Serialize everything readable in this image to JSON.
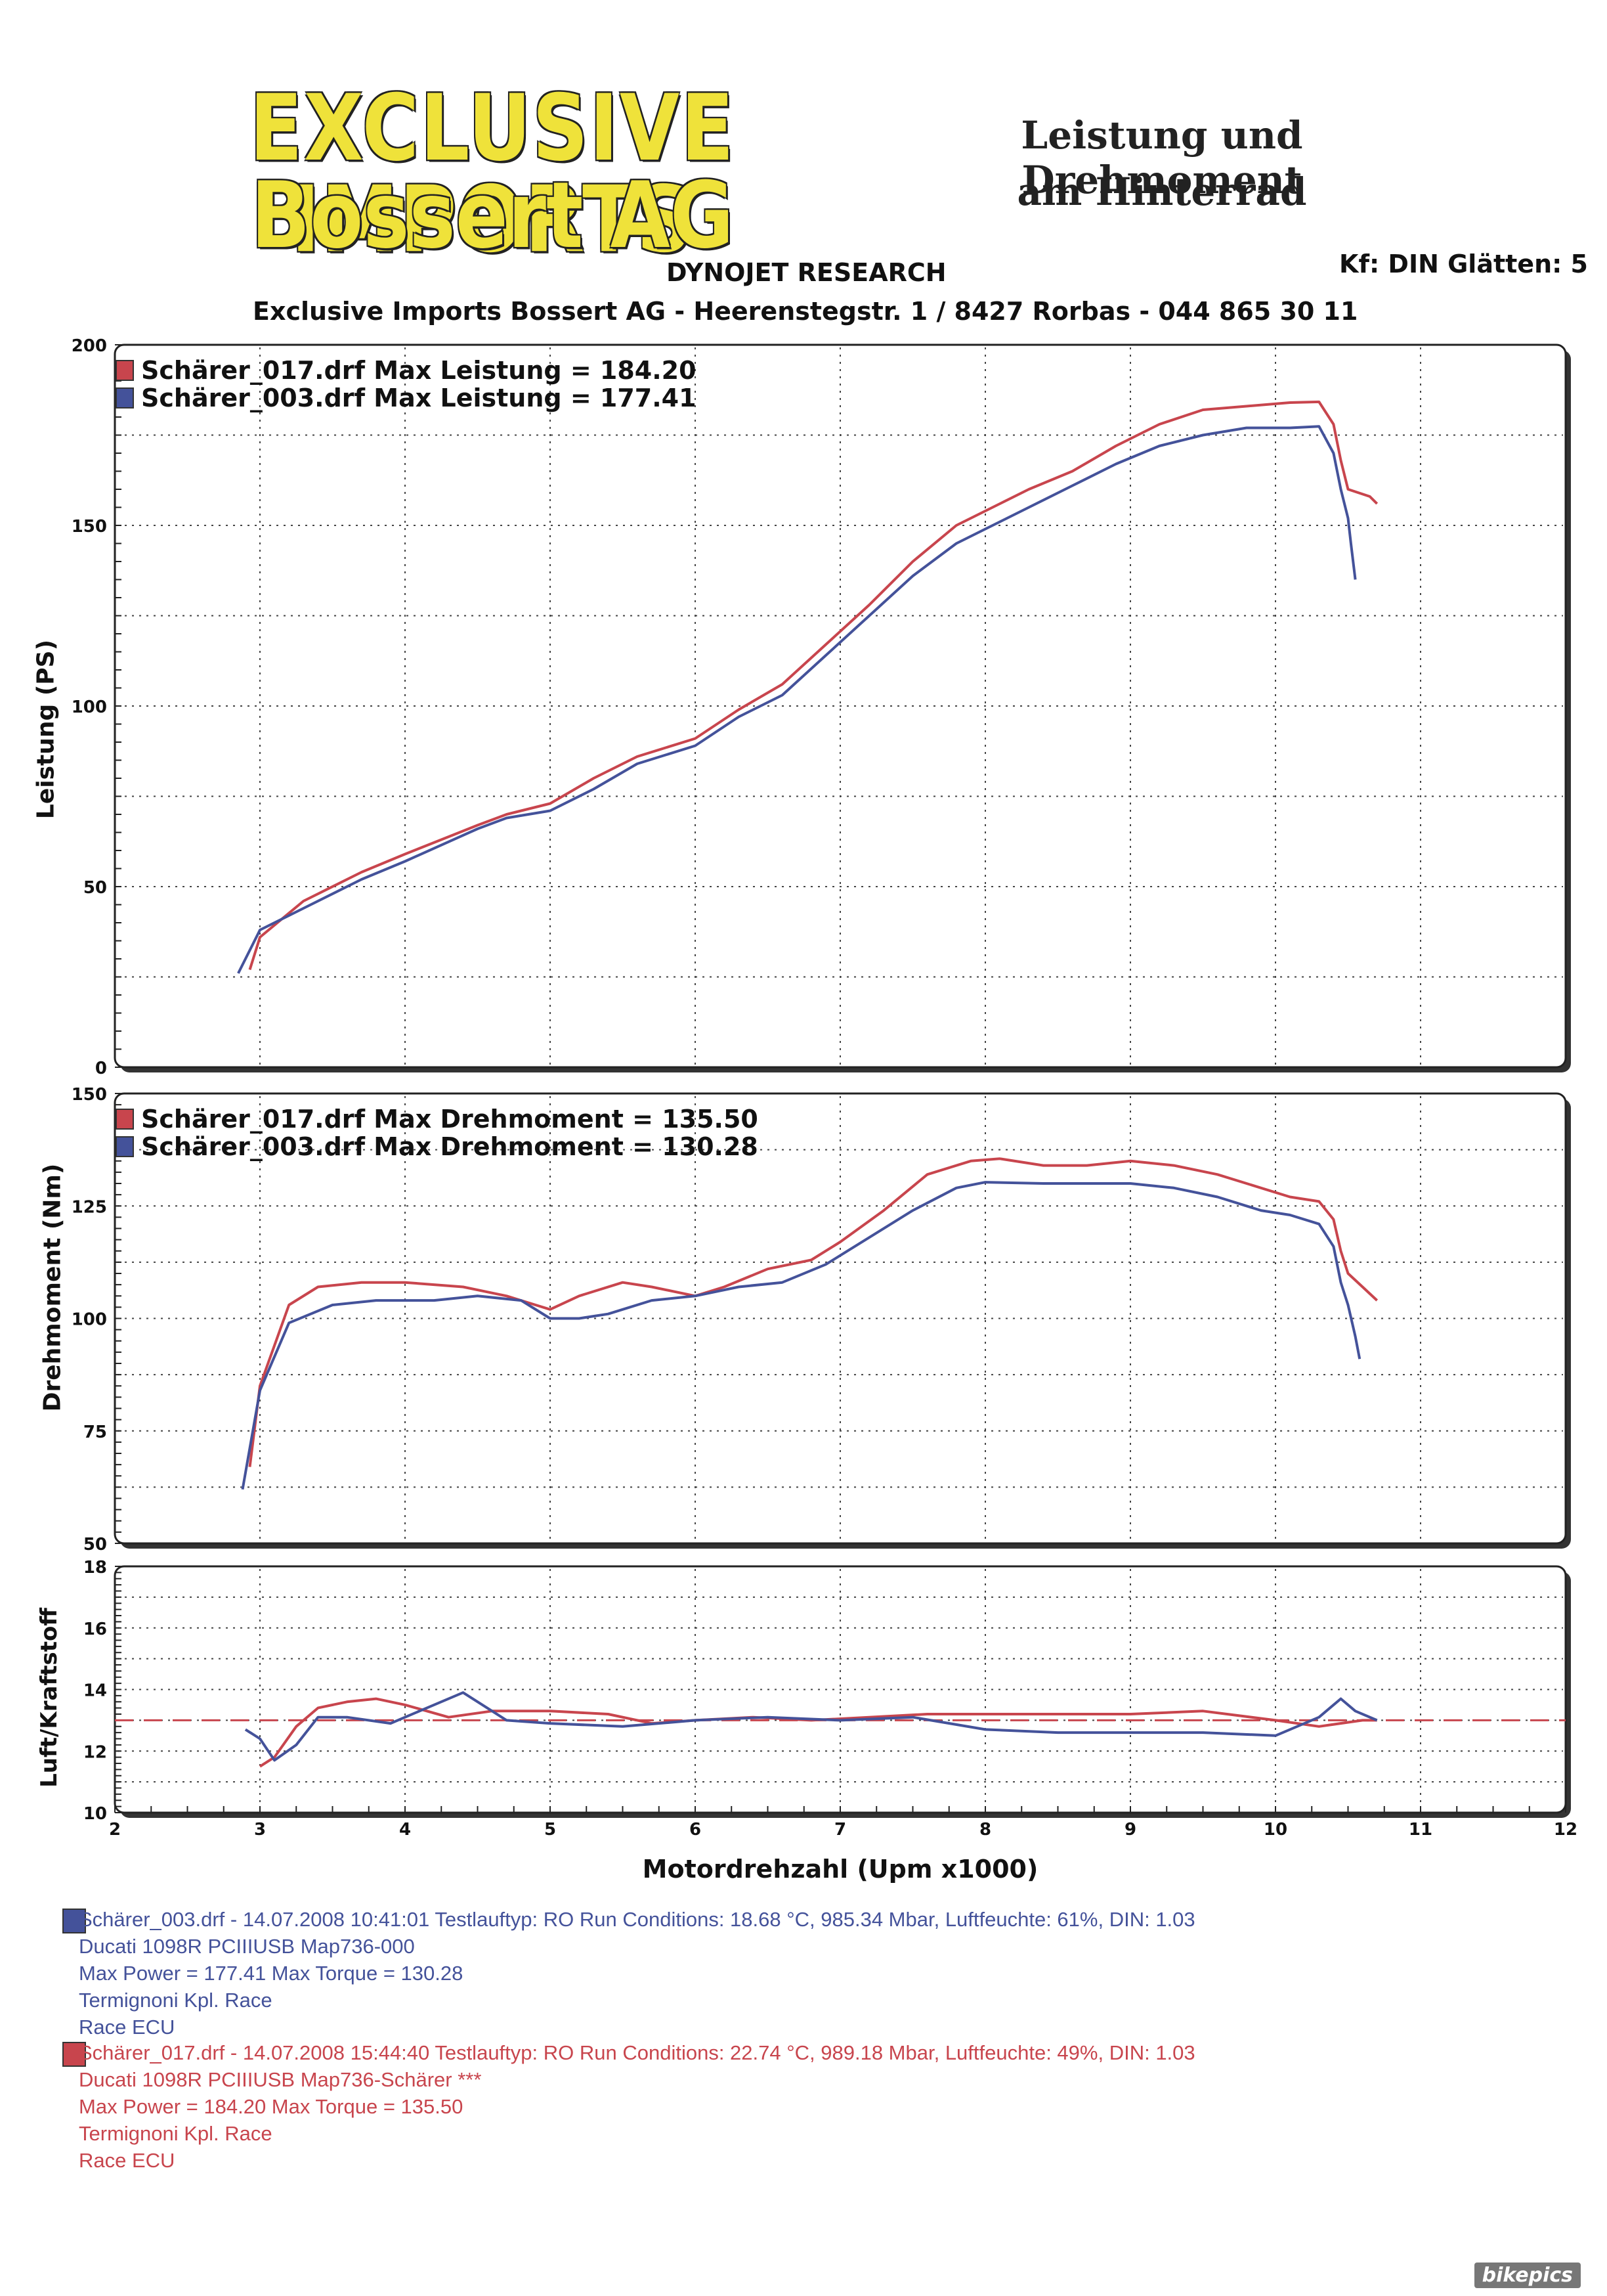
{
  "header": {
    "logo_line1": "EXCLUSIVE IMPORTS",
    "logo_line2": "Bossert AG",
    "title_line1": "Leistung und Drehmoment",
    "title_line2": "am Hinterrad",
    "subtitle": "DYNOJET RESEARCH",
    "kf": "Kf: DIN  Glätten: 5",
    "address": "Exclusive Imports Bossert AG - Heerenstegstr. 1 / 8427 Rorbas - 044 865 30 11"
  },
  "colors": {
    "red": "#c8454d",
    "blue": "#44529a",
    "grid": "#444444",
    "afr_ref": "#c8454d"
  },
  "xaxis_label": "Motordrehzahl (Upm x1000)",
  "chart_data": [
    {
      "type": "line",
      "ylabel": "Leistung (PS)",
      "ylim": [
        0,
        200
      ],
      "yticks": [
        0,
        50,
        100,
        150,
        200
      ],
      "xlim": [
        2,
        12
      ],
      "legend": [
        "Schärer_017.drf Max Leistung = 184.20",
        "Schärer_003.drf Max Leistung = 177.41"
      ],
      "series": [
        {
          "name": "Schärer_017.drf",
          "color": "red",
          "points": [
            [
              2.93,
              27
            ],
            [
              3.0,
              36
            ],
            [
              3.3,
              46
            ],
            [
              3.7,
              54
            ],
            [
              4.0,
              59
            ],
            [
              4.5,
              67
            ],
            [
              4.7,
              70
            ],
            [
              5.0,
              73
            ],
            [
              5.3,
              80
            ],
            [
              5.6,
              86
            ],
            [
              6.0,
              91
            ],
            [
              6.3,
              99
            ],
            [
              6.6,
              106
            ],
            [
              6.9,
              117
            ],
            [
              7.2,
              128
            ],
            [
              7.5,
              140
            ],
            [
              7.8,
              150
            ],
            [
              8.0,
              154
            ],
            [
              8.3,
              160
            ],
            [
              8.6,
              165
            ],
            [
              8.9,
              172
            ],
            [
              9.2,
              178
            ],
            [
              9.5,
              182
            ],
            [
              9.8,
              183
            ],
            [
              10.1,
              184
            ],
            [
              10.3,
              184.2
            ],
            [
              10.4,
              178
            ],
            [
              10.45,
              168
            ],
            [
              10.5,
              160
            ],
            [
              10.65,
              158
            ],
            [
              10.7,
              156
            ]
          ]
        },
        {
          "name": "Schärer_003.drf",
          "color": "blue",
          "points": [
            [
              2.85,
              26
            ],
            [
              3.0,
              38
            ],
            [
              3.3,
              44
            ],
            [
              3.7,
              52
            ],
            [
              4.0,
              57
            ],
            [
              4.5,
              66
            ],
            [
              4.7,
              69
            ],
            [
              5.0,
              71
            ],
            [
              5.3,
              77
            ],
            [
              5.6,
              84
            ],
            [
              6.0,
              89
            ],
            [
              6.3,
              97
            ],
            [
              6.6,
              103
            ],
            [
              6.9,
              114
            ],
            [
              7.2,
              125
            ],
            [
              7.5,
              136
            ],
            [
              7.8,
              145
            ],
            [
              8.0,
              149
            ],
            [
              8.3,
              155
            ],
            [
              8.6,
              161
            ],
            [
              8.9,
              167
            ],
            [
              9.2,
              172
            ],
            [
              9.5,
              175
            ],
            [
              9.8,
              177
            ],
            [
              10.1,
              177
            ],
            [
              10.3,
              177.41
            ],
            [
              10.4,
              170
            ],
            [
              10.45,
              160
            ],
            [
              10.5,
              152
            ],
            [
              10.52,
              145
            ],
            [
              10.55,
              135
            ]
          ]
        }
      ]
    },
    {
      "type": "line",
      "ylabel": "Drehmoment (Nm)",
      "ylim": [
        50,
        150
      ],
      "yticks": [
        50,
        75,
        100,
        125,
        150
      ],
      "xlim": [
        2,
        12
      ],
      "legend": [
        "Schärer_017.drf Max Drehmoment = 135.50",
        "Schärer_003.drf Max Drehmoment = 130.28"
      ],
      "series": [
        {
          "name": "Schärer_017.drf",
          "color": "red",
          "points": [
            [
              2.93,
              67
            ],
            [
              3.0,
              85
            ],
            [
              3.2,
              103
            ],
            [
              3.4,
              107
            ],
            [
              3.7,
              108
            ],
            [
              4.0,
              108
            ],
            [
              4.4,
              107
            ],
            [
              4.7,
              105
            ],
            [
              4.9,
              103
            ],
            [
              5.0,
              102
            ],
            [
              5.2,
              105
            ],
            [
              5.5,
              108
            ],
            [
              5.7,
              107
            ],
            [
              6.0,
              105
            ],
            [
              6.2,
              107
            ],
            [
              6.5,
              111
            ],
            [
              6.8,
              113
            ],
            [
              7.0,
              117
            ],
            [
              7.3,
              124
            ],
            [
              7.6,
              132
            ],
            [
              7.9,
              135
            ],
            [
              8.1,
              135.5
            ],
            [
              8.4,
              134
            ],
            [
              8.7,
              134
            ],
            [
              9.0,
              135
            ],
            [
              9.3,
              134
            ],
            [
              9.6,
              132
            ],
            [
              9.9,
              129
            ],
            [
              10.1,
              127
            ],
            [
              10.3,
              126
            ],
            [
              10.4,
              122
            ],
            [
              10.45,
              115
            ],
            [
              10.5,
              110
            ],
            [
              10.6,
              107
            ],
            [
              10.7,
              104
            ]
          ]
        },
        {
          "name": "Schärer_003.drf",
          "color": "blue",
          "points": [
            [
              2.88,
              62
            ],
            [
              3.0,
              84
            ],
            [
              3.2,
              99
            ],
            [
              3.5,
              103
            ],
            [
              3.8,
              104
            ],
            [
              4.2,
              104
            ],
            [
              4.5,
              105
            ],
            [
              4.8,
              104
            ],
            [
              5.0,
              100
            ],
            [
              5.2,
              100
            ],
            [
              5.4,
              101
            ],
            [
              5.7,
              104
            ],
            [
              6.0,
              105
            ],
            [
              6.3,
              107
            ],
            [
              6.6,
              108
            ],
            [
              6.9,
              112
            ],
            [
              7.2,
              118
            ],
            [
              7.5,
              124
            ],
            [
              7.8,
              129
            ],
            [
              8.0,
              130.28
            ],
            [
              8.4,
              130
            ],
            [
              8.7,
              130
            ],
            [
              9.0,
              130
            ],
            [
              9.3,
              129
            ],
            [
              9.6,
              127
            ],
            [
              9.9,
              124
            ],
            [
              10.1,
              123
            ],
            [
              10.3,
              121
            ],
            [
              10.4,
              116
            ],
            [
              10.45,
              108
            ],
            [
              10.5,
              103
            ],
            [
              10.55,
              96
            ],
            [
              10.58,
              91
            ]
          ]
        }
      ]
    },
    {
      "type": "line",
      "ylabel": "Luft/Kraftstoff",
      "ylim": [
        10,
        18
      ],
      "yticks": [
        10,
        12,
        14,
        16,
        18
      ],
      "xlim": [
        2,
        12
      ],
      "xticks": [
        2,
        3,
        4,
        5,
        6,
        7,
        8,
        9,
        10,
        11,
        12
      ],
      "reference_line": 13.0,
      "series": [
        {
          "name": "Schärer_017.drf",
          "color": "red",
          "points": [
            [
              3.0,
              11.5
            ],
            [
              3.1,
              11.8
            ],
            [
              3.25,
              12.8
            ],
            [
              3.4,
              13.4
            ],
            [
              3.6,
              13.6
            ],
            [
              3.8,
              13.7
            ],
            [
              4.0,
              13.5
            ],
            [
              4.3,
              13.1
            ],
            [
              4.6,
              13.3
            ],
            [
              5.0,
              13.3
            ],
            [
              5.4,
              13.2
            ],
            [
              5.7,
              12.9
            ],
            [
              6.0,
              13.0
            ],
            [
              6.4,
              13.1
            ],
            [
              6.8,
              13.0
            ],
            [
              7.2,
              13.1
            ],
            [
              7.6,
              13.2
            ],
            [
              8.0,
              13.2
            ],
            [
              8.5,
              13.2
            ],
            [
              9.0,
              13.2
            ],
            [
              9.5,
              13.3
            ],
            [
              10.0,
              13.0
            ],
            [
              10.3,
              12.8
            ],
            [
              10.6,
              13.0
            ],
            [
              10.7,
              13.0
            ]
          ]
        },
        {
          "name": "Schärer_003.drf",
          "color": "blue",
          "points": [
            [
              2.9,
              12.7
            ],
            [
              3.0,
              12.4
            ],
            [
              3.1,
              11.7
            ],
            [
              3.25,
              12.2
            ],
            [
              3.4,
              13.1
            ],
            [
              3.6,
              13.1
            ],
            [
              3.9,
              12.9
            ],
            [
              4.1,
              13.3
            ],
            [
              4.4,
              13.9
            ],
            [
              4.7,
              13.0
            ],
            [
              5.0,
              12.9
            ],
            [
              5.5,
              12.8
            ],
            [
              6.0,
              13.0
            ],
            [
              6.5,
              13.1
            ],
            [
              7.0,
              13.0
            ],
            [
              7.5,
              13.1
            ],
            [
              8.0,
              12.7
            ],
            [
              8.5,
              12.6
            ],
            [
              9.0,
              12.6
            ],
            [
              9.5,
              12.6
            ],
            [
              10.0,
              12.5
            ],
            [
              10.3,
              13.1
            ],
            [
              10.45,
              13.7
            ],
            [
              10.55,
              13.3
            ],
            [
              10.7,
              13.0
            ]
          ]
        }
      ]
    }
  ],
  "runs": [
    {
      "color": "blue",
      "line1": "Schärer_003.drf - 14.07.2008 10:41:01  Testlauftyp: RO  Run Conditions: 18.68 °C, 985.34 Mbar,  Luftfeuchte: 61%, DIN: 1.03",
      "line2": "Ducati 1098R   PCIIIUSB Map736-000",
      "line3": "Max Power = 177.41  Max Torque = 130.28",
      "line4": "Termignoni Kpl. Race",
      "line5": "Race ECU"
    },
    {
      "color": "red",
      "line1": "Schärer_017.drf - 14.07.2008 15:44:40  Testlauftyp: RO  Run Conditions: 22.74 °C, 989.18 Mbar,  Luftfeuchte: 49%, DIN: 1.03",
      "line2": "Ducati 1098R   PCIIIUSB Map736-Schärer   ***",
      "line3": "Max Power = 184.20  Max Torque = 135.50",
      "line4": "Termignoni Kpl. Race",
      "line5": "Race ECU"
    }
  ],
  "watermark": "bikepics"
}
